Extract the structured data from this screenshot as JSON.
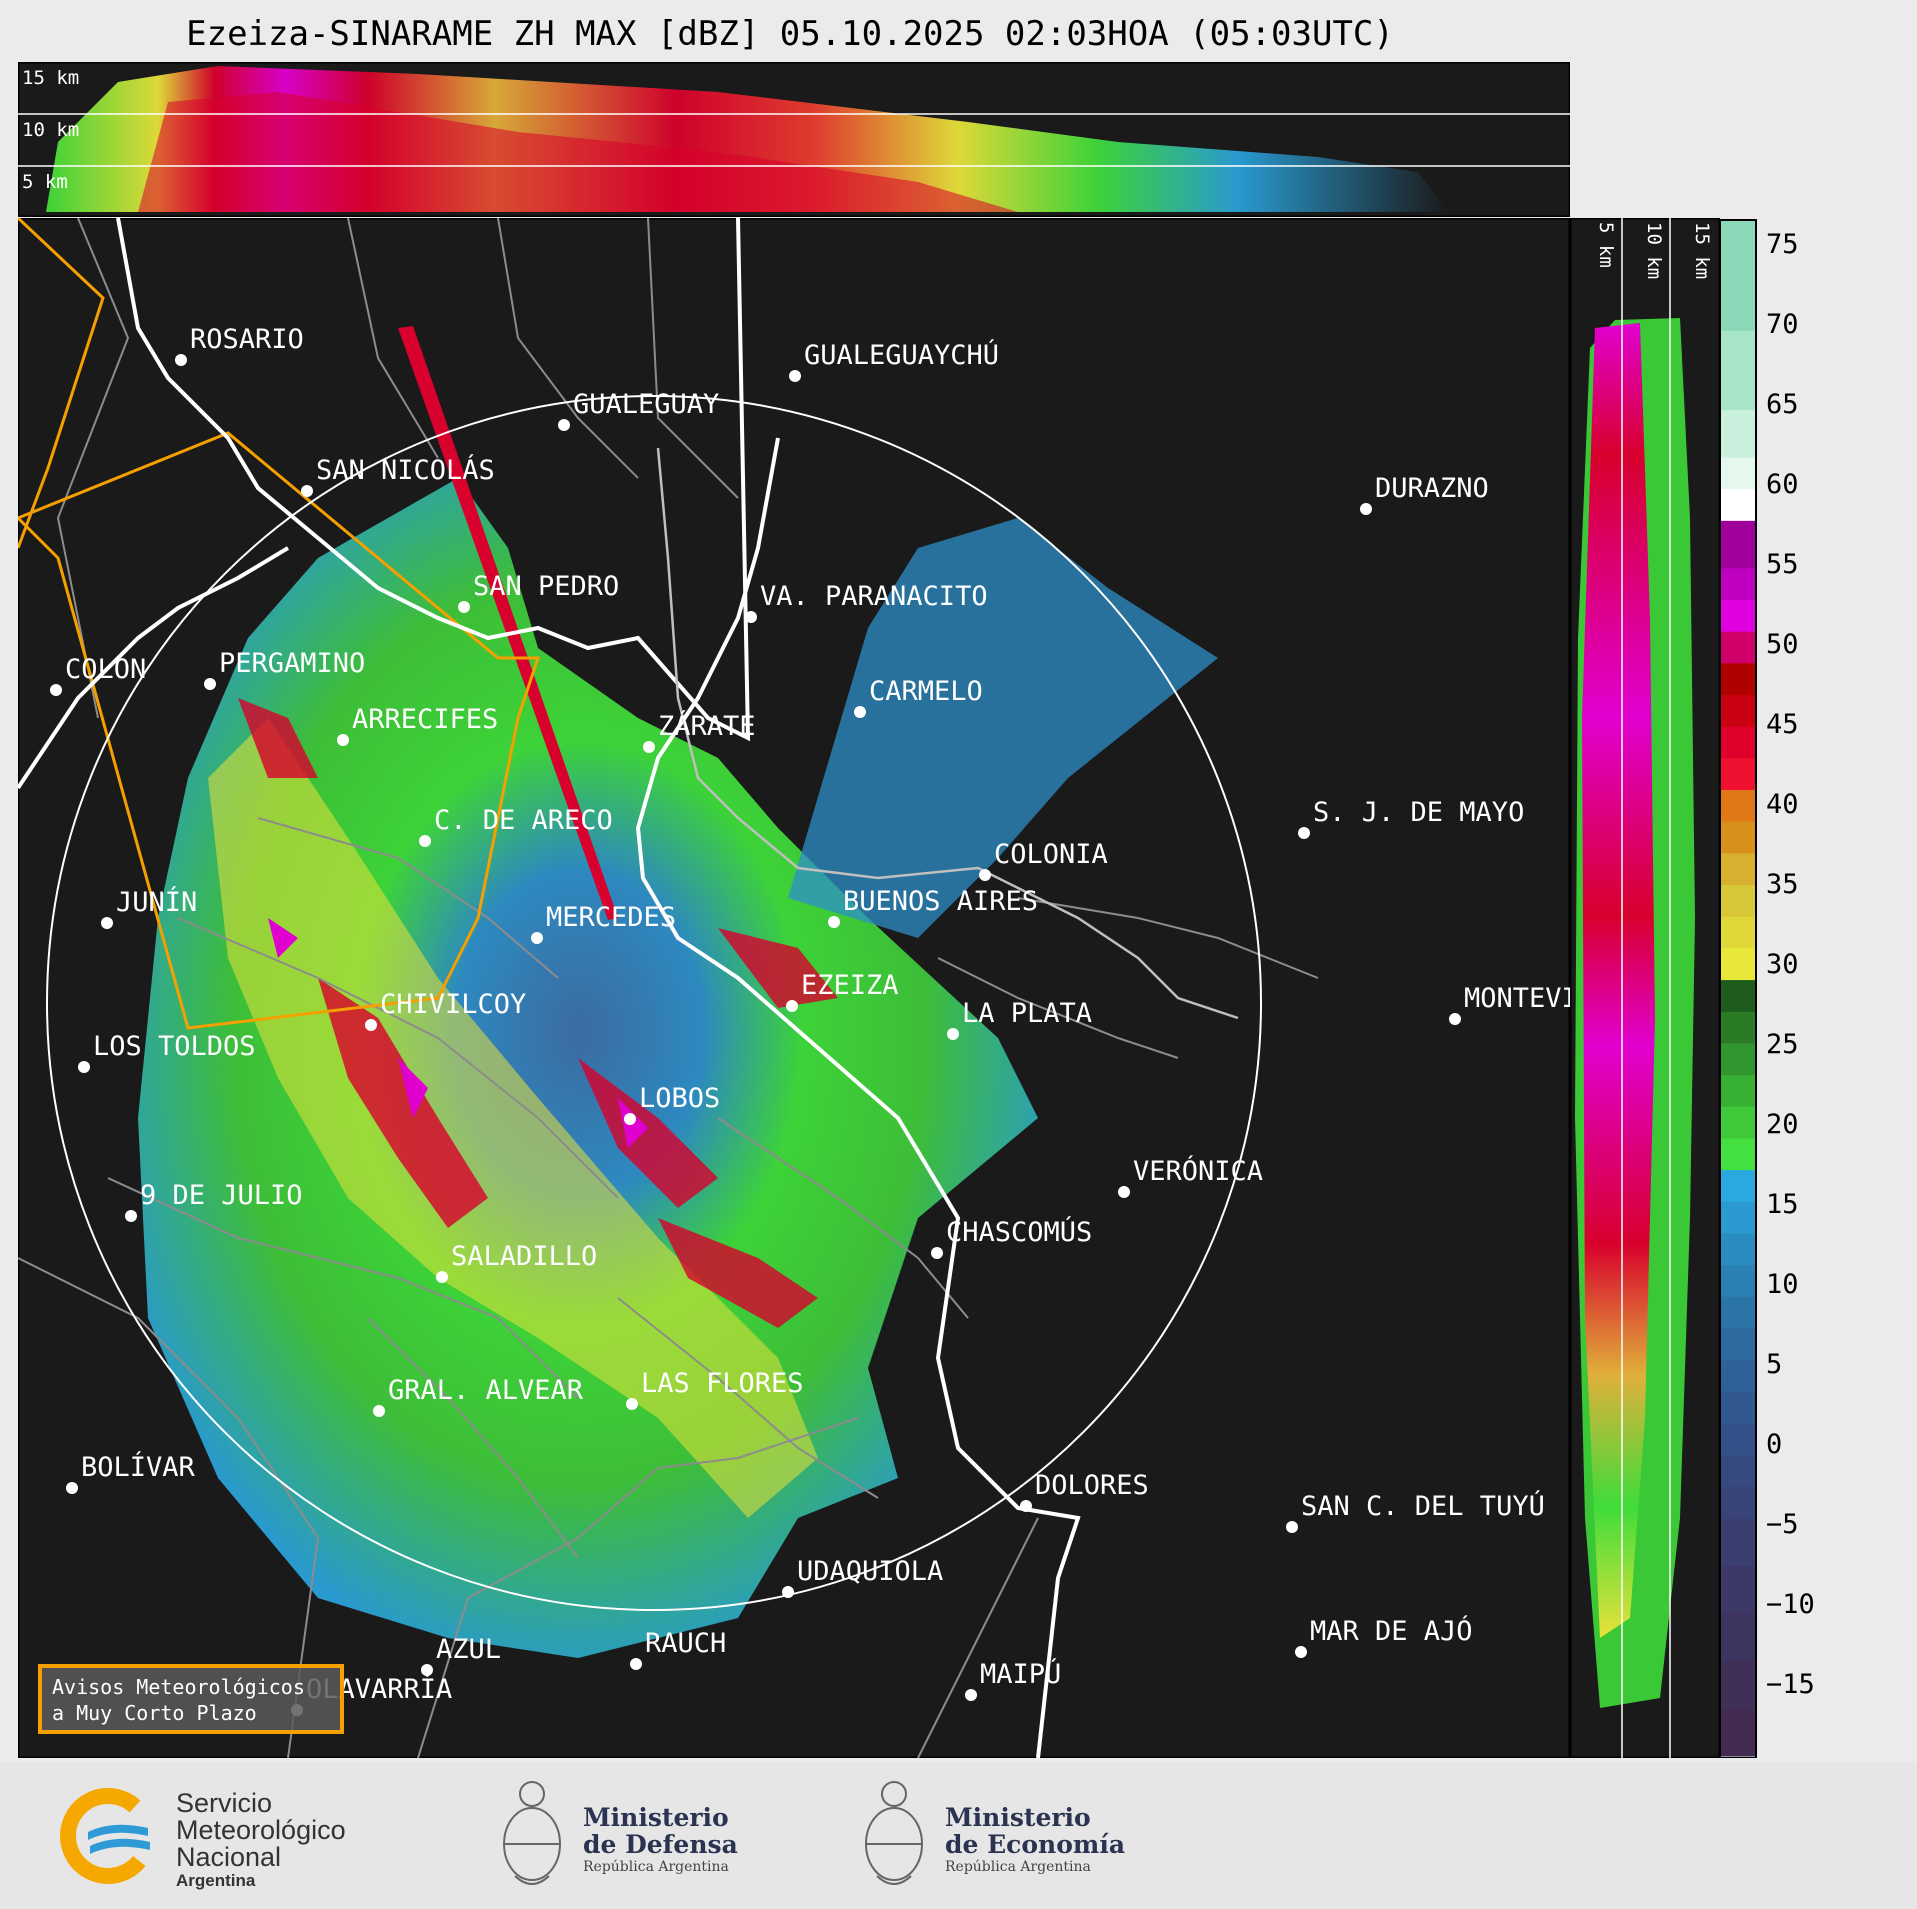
{
  "title": "Ezeiza-SINARAME ZH MAX [dBZ] 05.10.2025 02:03HOA (05:03UTC)",
  "height_labels_top": [
    "15 km",
    "10 km",
    "5 km"
  ],
  "height_labels_side": [
    "5 km",
    "10 km",
    "15 km"
  ],
  "colorbar": {
    "ticks": [
      "75",
      "70",
      "65",
      "60",
      "55",
      "50",
      "45",
      "40",
      "35",
      "30",
      "25",
      "20",
      "15",
      "10",
      "5",
      "0",
      "−5",
      "−10",
      "−15"
    ],
    "min": -20,
    "max": 77
  },
  "cities": [
    {
      "name": "ROSARIO"
    },
    {
      "name": "GUALEGUAYCHÚ"
    },
    {
      "name": "GUALEGUAY"
    },
    {
      "name": "SAN NICOLÁS"
    },
    {
      "name": "DURAZNO"
    },
    {
      "name": "SAN PEDRO"
    },
    {
      "name": "VA. PARANACITO"
    },
    {
      "name": "COLON"
    },
    {
      "name": "PERGAMINO"
    },
    {
      "name": "CARMELO"
    },
    {
      "name": "ARRECIFES"
    },
    {
      "name": "ZÁRATE"
    },
    {
      "name": "S. J. DE MAYO"
    },
    {
      "name": "C. DE ARECO"
    },
    {
      "name": "COLONIA"
    },
    {
      "name": "JUNÍN"
    },
    {
      "name": "MERCEDES"
    },
    {
      "name": "BUENOS AIRES"
    },
    {
      "name": "EZEIZA"
    },
    {
      "name": "MONTEVIDEO"
    },
    {
      "name": "CHIVILCOY"
    },
    {
      "name": "LA PLATA"
    },
    {
      "name": "LOS TOLDOS"
    },
    {
      "name": "LOBOS"
    },
    {
      "name": "VERÓNICA"
    },
    {
      "name": "9 DE JULIO"
    },
    {
      "name": "CHASCOMÚS"
    },
    {
      "name": "SALADILLO"
    },
    {
      "name": "GRAL. ALVEAR"
    },
    {
      "name": "LAS FLORES"
    },
    {
      "name": "BOLÍVAR"
    },
    {
      "name": "DOLORES"
    },
    {
      "name": "SAN C. DEL TUYÚ"
    },
    {
      "name": "UDAQUIOLA"
    },
    {
      "name": "MAR DE AJÓ"
    },
    {
      "name": "AZUL"
    },
    {
      "name": "RAUCH"
    },
    {
      "name": "OLAVARRÍA"
    },
    {
      "name": "MAIPÚ"
    }
  ],
  "avisos": {
    "line1": "Avisos Meteorológicos",
    "line2": "a Muy Corto Plazo"
  },
  "logos": {
    "smn": {
      "line1": "Servicio",
      "line2": "Meteorológico",
      "line3": "Nacional",
      "line4": "Argentina",
      "icon": "smn-swirl-icon"
    },
    "defensa": {
      "line1": "Ministerio",
      "line2": "de Defensa",
      "line3": "República Argentina",
      "icon": "argentine-coat-of-arms-icon"
    },
    "economia": {
      "line1": "Ministerio",
      "line2": "de Economía",
      "line3": "República Argentina",
      "icon": "argentine-coat-of-arms-icon"
    }
  },
  "colors": {
    "panel_bg": "#1a1a1a",
    "range_ring": "#ffffff",
    "coast": "#ffffff",
    "warning_area": "#f5a000",
    "borders": "#8c8c8c"
  }
}
